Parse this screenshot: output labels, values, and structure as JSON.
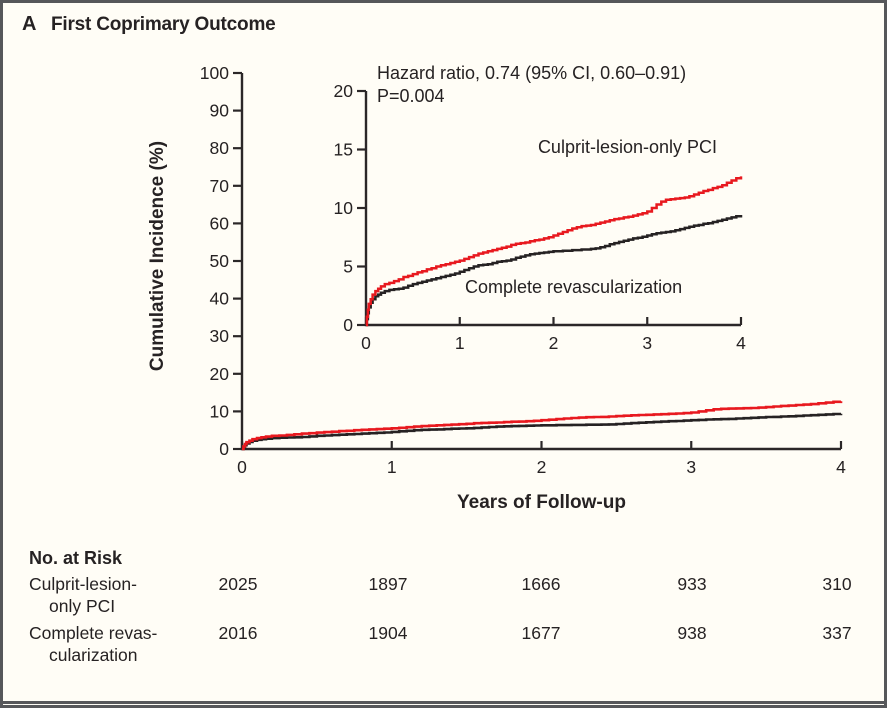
{
  "panel": {
    "label": "A",
    "title": "First Coprimary Outcome"
  },
  "annotation": {
    "line1": "Hazard ratio, 0.74 (95% CI, 0.60–0.91)",
    "line2": "P=0.004"
  },
  "axes": {
    "ylabel": "Cumulative Incidence (%)",
    "xlabel": "Years of Follow-up",
    "main_yticks": [
      0,
      10,
      20,
      30,
      40,
      50,
      60,
      70,
      80,
      90,
      100
    ],
    "main_xticks": [
      0,
      1,
      2,
      3,
      4
    ],
    "inset_yticks": [
      0,
      5,
      10,
      15,
      20
    ],
    "inset_xticks": [
      0,
      1,
      2,
      3,
      4
    ]
  },
  "colors": {
    "red": "#e8191f",
    "black": "#262223",
    "axis": "#2b2728",
    "border": "#56575a",
    "background": "#fffdf6"
  },
  "risk_table": {
    "header": "No. at Risk",
    "rows": [
      {
        "label_line1": "Culprit-lesion-",
        "label_line2": "only PCI",
        "values": [
          "2025",
          "1897",
          "1666",
          "933",
          "310"
        ]
      },
      {
        "label_line1": "Complete revas-",
        "label_line2": "cularization",
        "values": [
          "2016",
          "1904",
          "1677",
          "938",
          "337"
        ]
      }
    ]
  },
  "chart_data": {
    "type": "line",
    "title": "First Coprimary Outcome",
    "xlabel": "Years of Follow-up",
    "ylabel": "Cumulative Incidence (%)",
    "xlim": [
      0,
      4
    ],
    "main_ylim": [
      0,
      100
    ],
    "inset_ylim": [
      0,
      20
    ],
    "grid": false,
    "annotation": "Hazard ratio, 0.74 (95% CI, 0.60–0.91); P=0.004",
    "no_at_risk": {
      "times": [
        0,
        1,
        2,
        3,
        4
      ],
      "culprit_lesion_only_pci": [
        2025,
        1897,
        1666,
        933,
        310
      ],
      "complete_revascularization": [
        2016,
        1904,
        1677,
        938,
        337
      ]
    },
    "series": [
      {
        "name": "Culprit-lesion-only PCI",
        "color": "#e8191f",
        "points": [
          [
            0,
            0
          ],
          [
            0.01,
            0.7
          ],
          [
            0.02,
            1.3
          ],
          [
            0.03,
            1.8
          ],
          [
            0.05,
            2.2
          ],
          [
            0.07,
            2.6
          ],
          [
            0.1,
            2.9
          ],
          [
            0.13,
            3.1
          ],
          [
            0.16,
            3.3
          ],
          [
            0.2,
            3.5
          ],
          [
            0.25,
            3.6
          ],
          [
            0.3,
            3.75
          ],
          [
            0.35,
            3.9
          ],
          [
            0.4,
            4.1
          ],
          [
            0.45,
            4.2
          ],
          [
            0.5,
            4.35
          ],
          [
            0.55,
            4.5
          ],
          [
            0.6,
            4.6
          ],
          [
            0.65,
            4.75
          ],
          [
            0.7,
            4.85
          ],
          [
            0.75,
            5.0
          ],
          [
            0.8,
            5.1
          ],
          [
            0.85,
            5.2
          ],
          [
            0.9,
            5.3
          ],
          [
            0.95,
            5.4
          ],
          [
            1.0,
            5.5
          ],
          [
            1.05,
            5.65
          ],
          [
            1.1,
            5.8
          ],
          [
            1.15,
            5.95
          ],
          [
            1.2,
            6.1
          ],
          [
            1.25,
            6.2
          ],
          [
            1.3,
            6.3
          ],
          [
            1.35,
            6.4
          ],
          [
            1.4,
            6.5
          ],
          [
            1.45,
            6.6
          ],
          [
            1.5,
            6.7
          ],
          [
            1.55,
            6.85
          ],
          [
            1.6,
            6.95
          ],
          [
            1.65,
            7.0
          ],
          [
            1.7,
            7.05
          ],
          [
            1.75,
            7.15
          ],
          [
            1.8,
            7.25
          ],
          [
            1.85,
            7.3
          ],
          [
            1.9,
            7.4
          ],
          [
            1.95,
            7.5
          ],
          [
            2.0,
            7.65
          ],
          [
            2.05,
            7.8
          ],
          [
            2.1,
            7.95
          ],
          [
            2.15,
            8.1
          ],
          [
            2.2,
            8.25
          ],
          [
            2.25,
            8.35
          ],
          [
            2.3,
            8.45
          ],
          [
            2.35,
            8.5
          ],
          [
            2.4,
            8.55
          ],
          [
            2.45,
            8.65
          ],
          [
            2.5,
            8.75
          ],
          [
            2.55,
            8.85
          ],
          [
            2.6,
            8.95
          ],
          [
            2.65,
            9.05
          ],
          [
            2.7,
            9.1
          ],
          [
            2.75,
            9.2
          ],
          [
            2.8,
            9.25
          ],
          [
            2.85,
            9.35
          ],
          [
            2.9,
            9.45
          ],
          [
            2.95,
            9.55
          ],
          [
            3.0,
            9.7
          ],
          [
            3.05,
            10.0
          ],
          [
            3.1,
            10.3
          ],
          [
            3.15,
            10.55
          ],
          [
            3.2,
            10.7
          ],
          [
            3.25,
            10.75
          ],
          [
            3.3,
            10.8
          ],
          [
            3.35,
            10.85
          ],
          [
            3.4,
            10.9
          ],
          [
            3.45,
            11.0
          ],
          [
            3.5,
            11.15
          ],
          [
            3.55,
            11.3
          ],
          [
            3.6,
            11.45
          ],
          [
            3.65,
            11.55
          ],
          [
            3.7,
            11.7
          ],
          [
            3.75,
            11.8
          ],
          [
            3.8,
            11.95
          ],
          [
            3.85,
            12.15
          ],
          [
            3.9,
            12.35
          ],
          [
            3.95,
            12.55
          ],
          [
            4.0,
            12.7
          ]
        ]
      },
      {
        "name": "Complete revascularization",
        "color": "#262223",
        "points": [
          [
            0,
            0
          ],
          [
            0.01,
            0.5
          ],
          [
            0.02,
            1.0
          ],
          [
            0.03,
            1.5
          ],
          [
            0.05,
            1.9
          ],
          [
            0.07,
            2.2
          ],
          [
            0.1,
            2.45
          ],
          [
            0.13,
            2.6
          ],
          [
            0.16,
            2.75
          ],
          [
            0.2,
            2.9
          ],
          [
            0.25,
            3.0
          ],
          [
            0.3,
            3.05
          ],
          [
            0.35,
            3.1
          ],
          [
            0.4,
            3.2
          ],
          [
            0.45,
            3.35
          ],
          [
            0.5,
            3.5
          ],
          [
            0.55,
            3.6
          ],
          [
            0.6,
            3.7
          ],
          [
            0.65,
            3.8
          ],
          [
            0.7,
            3.9
          ],
          [
            0.75,
            4.0
          ],
          [
            0.8,
            4.1
          ],
          [
            0.85,
            4.2
          ],
          [
            0.9,
            4.3
          ],
          [
            0.95,
            4.4
          ],
          [
            1.0,
            4.55
          ],
          [
            1.05,
            4.7
          ],
          [
            1.1,
            4.85
          ],
          [
            1.15,
            5.0
          ],
          [
            1.2,
            5.1
          ],
          [
            1.25,
            5.15
          ],
          [
            1.3,
            5.2
          ],
          [
            1.35,
            5.3
          ],
          [
            1.4,
            5.4
          ],
          [
            1.45,
            5.45
          ],
          [
            1.5,
            5.5
          ],
          [
            1.55,
            5.6
          ],
          [
            1.6,
            5.75
          ],
          [
            1.65,
            5.85
          ],
          [
            1.7,
            5.95
          ],
          [
            1.75,
            6.05
          ],
          [
            1.8,
            6.1
          ],
          [
            1.85,
            6.15
          ],
          [
            1.9,
            6.2
          ],
          [
            1.95,
            6.25
          ],
          [
            2.0,
            6.3
          ],
          [
            2.1,
            6.35
          ],
          [
            2.2,
            6.4
          ],
          [
            2.3,
            6.45
          ],
          [
            2.4,
            6.5
          ],
          [
            2.45,
            6.55
          ],
          [
            2.5,
            6.65
          ],
          [
            2.55,
            6.75
          ],
          [
            2.6,
            6.9
          ],
          [
            2.65,
            7.0
          ],
          [
            2.7,
            7.1
          ],
          [
            2.75,
            7.2
          ],
          [
            2.8,
            7.3
          ],
          [
            2.85,
            7.4
          ],
          [
            2.9,
            7.45
          ],
          [
            2.95,
            7.55
          ],
          [
            3.0,
            7.65
          ],
          [
            3.05,
            7.75
          ],
          [
            3.1,
            7.85
          ],
          [
            3.15,
            7.9
          ],
          [
            3.2,
            7.95
          ],
          [
            3.25,
            8.0
          ],
          [
            3.3,
            8.1
          ],
          [
            3.35,
            8.2
          ],
          [
            3.4,
            8.3
          ],
          [
            3.45,
            8.4
          ],
          [
            3.5,
            8.5
          ],
          [
            3.55,
            8.55
          ],
          [
            3.6,
            8.65
          ],
          [
            3.65,
            8.7
          ],
          [
            3.7,
            8.8
          ],
          [
            3.75,
            8.9
          ],
          [
            3.8,
            9.0
          ],
          [
            3.85,
            9.1
          ],
          [
            3.9,
            9.2
          ],
          [
            3.95,
            9.3
          ],
          [
            4.0,
            9.4
          ]
        ]
      }
    ]
  }
}
